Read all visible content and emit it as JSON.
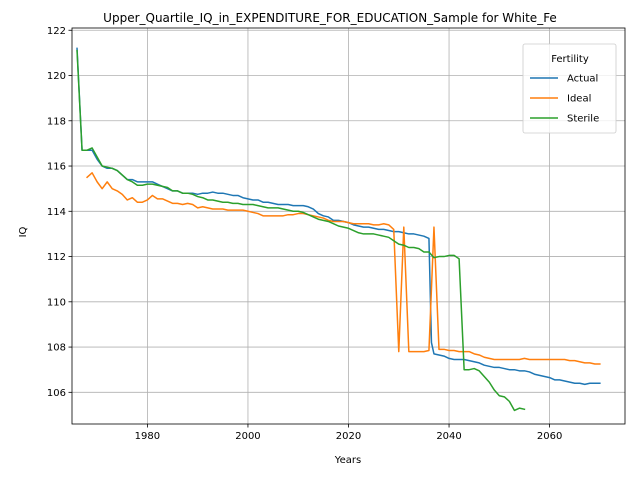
{
  "chart_data": {
    "type": "line",
    "title": "Upper_Quartile_IQ_in_EXPENDITURE_FOR_EDUCATION_Sample for White_Fe",
    "xlabel": "Years",
    "ylabel": "IQ",
    "xlim": [
      1965,
      2075
    ],
    "ylim": [
      104.6,
      122.1
    ],
    "xticks": [
      1980,
      2000,
      2020,
      2040,
      2060
    ],
    "yticks": [
      106,
      108,
      110,
      112,
      114,
      116,
      118,
      120,
      122
    ],
    "grid": true,
    "legend": {
      "title": "Fertility",
      "placement": "top-right"
    },
    "series": [
      {
        "name": "Actual",
        "color": "#1f77b4",
        "points": [
          [
            1966,
            121.2
          ],
          [
            1967,
            116.7
          ],
          [
            1968,
            116.7
          ],
          [
            1969,
            116.7
          ],
          [
            1970,
            116.3
          ],
          [
            1971,
            116.0
          ],
          [
            1972,
            115.9
          ],
          [
            1973,
            115.9
          ],
          [
            1974,
            115.8
          ],
          [
            1975,
            115.6
          ],
          [
            1976,
            115.4
          ],
          [
            1977,
            115.4
          ],
          [
            1978,
            115.3
          ],
          [
            1979,
            115.3
          ],
          [
            1980,
            115.3
          ],
          [
            1981,
            115.3
          ],
          [
            1982,
            115.2
          ],
          [
            1983,
            115.1
          ],
          [
            1984,
            115.0
          ],
          [
            1985,
            114.9
          ],
          [
            1986,
            114.9
          ],
          [
            1987,
            114.8
          ],
          [
            1988,
            114.8
          ],
          [
            1989,
            114.8
          ],
          [
            1990,
            114.75
          ],
          [
            1991,
            114.8
          ],
          [
            1992,
            114.8
          ],
          [
            1993,
            114.85
          ],
          [
            1994,
            114.8
          ],
          [
            1995,
            114.8
          ],
          [
            1996,
            114.75
          ],
          [
            1997,
            114.7
          ],
          [
            1998,
            114.7
          ],
          [
            1999,
            114.6
          ],
          [
            2000,
            114.55
          ],
          [
            2001,
            114.5
          ],
          [
            2002,
            114.5
          ],
          [
            2003,
            114.4
          ],
          [
            2004,
            114.4
          ],
          [
            2005,
            114.35
          ],
          [
            2006,
            114.3
          ],
          [
            2007,
            114.3
          ],
          [
            2008,
            114.3
          ],
          [
            2009,
            114.25
          ],
          [
            2010,
            114.25
          ],
          [
            2011,
            114.25
          ],
          [
            2012,
            114.2
          ],
          [
            2013,
            114.1
          ],
          [
            2014,
            113.9
          ],
          [
            2015,
            113.8
          ],
          [
            2016,
            113.75
          ],
          [
            2017,
            113.6
          ],
          [
            2018,
            113.6
          ],
          [
            2019,
            113.55
          ],
          [
            2020,
            113.5
          ],
          [
            2021,
            113.4
          ],
          [
            2022,
            113.35
          ],
          [
            2023,
            113.3
          ],
          [
            2024,
            113.3
          ],
          [
            2025,
            113.25
          ],
          [
            2026,
            113.2
          ],
          [
            2027,
            113.2
          ],
          [
            2028,
            113.15
          ],
          [
            2029,
            113.1
          ],
          [
            2030,
            113.1
          ],
          [
            2031,
            113.05
          ],
          [
            2032,
            113.0
          ],
          [
            2033,
            113.0
          ],
          [
            2034,
            112.95
          ],
          [
            2035,
            112.9
          ],
          [
            2036,
            112.8
          ],
          [
            2036.5,
            108.2
          ],
          [
            2037,
            107.7
          ],
          [
            2038,
            107.65
          ],
          [
            2039,
            107.6
          ],
          [
            2040,
            107.5
          ],
          [
            2041,
            107.45
          ],
          [
            2042,
            107.45
          ],
          [
            2043,
            107.45
          ],
          [
            2044,
            107.4
          ],
          [
            2045,
            107.35
          ],
          [
            2046,
            107.3
          ],
          [
            2047,
            107.2
          ],
          [
            2048,
            107.15
          ],
          [
            2049,
            107.1
          ],
          [
            2050,
            107.1
          ],
          [
            2051,
            107.05
          ],
          [
            2052,
            107.0
          ],
          [
            2053,
            107.0
          ],
          [
            2054,
            106.95
          ],
          [
            2055,
            106.95
          ],
          [
            2056,
            106.9
          ],
          [
            2057,
            106.8
          ],
          [
            2058,
            106.75
          ],
          [
            2059,
            106.7
          ],
          [
            2060,
            106.65
          ],
          [
            2061,
            106.55
          ],
          [
            2062,
            106.55
          ],
          [
            2063,
            106.5
          ],
          [
            2064,
            106.45
          ],
          [
            2065,
            106.4
          ],
          [
            2066,
            106.4
          ],
          [
            2067,
            106.35
          ],
          [
            2068,
            106.4
          ],
          [
            2069,
            106.4
          ],
          [
            2070,
            106.4
          ]
        ]
      },
      {
        "name": "Ideal",
        "color": "#ff7f0e",
        "points": [
          [
            1968,
            115.5
          ],
          [
            1969,
            115.7
          ],
          [
            1970,
            115.3
          ],
          [
            1971,
            115.0
          ],
          [
            1972,
            115.3
          ],
          [
            1973,
            115.0
          ],
          [
            1974,
            114.9
          ],
          [
            1975,
            114.75
          ],
          [
            1976,
            114.5
          ],
          [
            1977,
            114.6
          ],
          [
            1978,
            114.4
          ],
          [
            1979,
            114.4
          ],
          [
            1980,
            114.5
          ],
          [
            1981,
            114.7
          ],
          [
            1982,
            114.55
          ],
          [
            1983,
            114.55
          ],
          [
            1984,
            114.45
          ],
          [
            1985,
            114.35
          ],
          [
            1986,
            114.35
          ],
          [
            1987,
            114.3
          ],
          [
            1988,
            114.35
          ],
          [
            1989,
            114.3
          ],
          [
            1990,
            114.15
          ],
          [
            1991,
            114.2
          ],
          [
            1992,
            114.15
          ],
          [
            1993,
            114.1
          ],
          [
            1994,
            114.1
          ],
          [
            1995,
            114.1
          ],
          [
            1996,
            114.05
          ],
          [
            1997,
            114.05
          ],
          [
            1998,
            114.05
          ],
          [
            1999,
            114.05
          ],
          [
            2000,
            114.0
          ],
          [
            2001,
            113.95
          ],
          [
            2002,
            113.9
          ],
          [
            2003,
            113.8
          ],
          [
            2004,
            113.8
          ],
          [
            2005,
            113.8
          ],
          [
            2006,
            113.8
          ],
          [
            2007,
            113.8
          ],
          [
            2008,
            113.85
          ],
          [
            2009,
            113.85
          ],
          [
            2010,
            113.9
          ],
          [
            2011,
            113.9
          ],
          [
            2012,
            113.85
          ],
          [
            2013,
            113.8
          ],
          [
            2014,
            113.75
          ],
          [
            2015,
            113.7
          ],
          [
            2016,
            113.6
          ],
          [
            2017,
            113.55
          ],
          [
            2018,
            113.55
          ],
          [
            2019,
            113.55
          ],
          [
            2020,
            113.5
          ],
          [
            2021,
            113.45
          ],
          [
            2022,
            113.45
          ],
          [
            2023,
            113.45
          ],
          [
            2024,
            113.45
          ],
          [
            2025,
            113.4
          ],
          [
            2026,
            113.4
          ],
          [
            2027,
            113.45
          ],
          [
            2028,
            113.4
          ],
          [
            2029,
            113.2
          ],
          [
            2030,
            107.8
          ],
          [
            2031,
            113.3
          ],
          [
            2032,
            107.8
          ],
          [
            2033,
            107.8
          ],
          [
            2034,
            107.8
          ],
          [
            2035,
            107.8
          ],
          [
            2036,
            107.85
          ],
          [
            2037,
            113.3
          ],
          [
            2038,
            107.9
          ],
          [
            2039,
            107.9
          ],
          [
            2040,
            107.85
          ],
          [
            2041,
            107.85
          ],
          [
            2042,
            107.8
          ],
          [
            2043,
            107.8
          ],
          [
            2044,
            107.8
          ],
          [
            2045,
            107.7
          ],
          [
            2046,
            107.65
          ],
          [
            2047,
            107.55
          ],
          [
            2048,
            107.5
          ],
          [
            2049,
            107.45
          ],
          [
            2050,
            107.45
          ],
          [
            2051,
            107.45
          ],
          [
            2052,
            107.45
          ],
          [
            2053,
            107.45
          ],
          [
            2054,
            107.45
          ],
          [
            2055,
            107.5
          ],
          [
            2056,
            107.45
          ],
          [
            2057,
            107.45
          ],
          [
            2058,
            107.45
          ],
          [
            2059,
            107.45
          ],
          [
            2060,
            107.45
          ],
          [
            2061,
            107.45
          ],
          [
            2062,
            107.45
          ],
          [
            2063,
            107.45
          ],
          [
            2064,
            107.4
          ],
          [
            2065,
            107.4
          ],
          [
            2066,
            107.35
          ],
          [
            2067,
            107.3
          ],
          [
            2068,
            107.3
          ],
          [
            2069,
            107.25
          ],
          [
            2070,
            107.25
          ]
        ]
      },
      {
        "name": "Sterile",
        "color": "#2ca02c",
        "points": [
          [
            1966,
            121.1
          ],
          [
            1967,
            116.7
          ],
          [
            1968,
            116.7
          ],
          [
            1969,
            116.8
          ],
          [
            1970,
            116.4
          ],
          [
            1971,
            116.0
          ],
          [
            1972,
            115.95
          ],
          [
            1973,
            115.9
          ],
          [
            1974,
            115.8
          ],
          [
            1975,
            115.6
          ],
          [
            1976,
            115.4
          ],
          [
            1977,
            115.3
          ],
          [
            1978,
            115.15
          ],
          [
            1979,
            115.15
          ],
          [
            1980,
            115.2
          ],
          [
            1981,
            115.2
          ],
          [
            1982,
            115.15
          ],
          [
            1983,
            115.1
          ],
          [
            1984,
            115.05
          ],
          [
            1985,
            114.9
          ],
          [
            1986,
            114.9
          ],
          [
            1987,
            114.8
          ],
          [
            1988,
            114.8
          ],
          [
            1989,
            114.75
          ],
          [
            1990,
            114.65
          ],
          [
            1991,
            114.6
          ],
          [
            1992,
            114.5
          ],
          [
            1993,
            114.5
          ],
          [
            1994,
            114.45
          ],
          [
            1995,
            114.4
          ],
          [
            1996,
            114.4
          ],
          [
            1997,
            114.35
          ],
          [
            1998,
            114.35
          ],
          [
            1999,
            114.3
          ],
          [
            2000,
            114.3
          ],
          [
            2001,
            114.3
          ],
          [
            2002,
            114.25
          ],
          [
            2003,
            114.2
          ],
          [
            2004,
            114.15
          ],
          [
            2005,
            114.15
          ],
          [
            2006,
            114.15
          ],
          [
            2007,
            114.1
          ],
          [
            2008,
            114.05
          ],
          [
            2009,
            114.0
          ],
          [
            2010,
            114.0
          ],
          [
            2011,
            113.95
          ],
          [
            2012,
            113.85
          ],
          [
            2013,
            113.75
          ],
          [
            2014,
            113.65
          ],
          [
            2015,
            113.6
          ],
          [
            2016,
            113.55
          ],
          [
            2017,
            113.45
          ],
          [
            2018,
            113.35
          ],
          [
            2019,
            113.3
          ],
          [
            2020,
            113.25
          ],
          [
            2021,
            113.15
          ],
          [
            2022,
            113.05
          ],
          [
            2023,
            113.0
          ],
          [
            2024,
            113.0
          ],
          [
            2025,
            113.0
          ],
          [
            2026,
            112.95
          ],
          [
            2027,
            112.9
          ],
          [
            2028,
            112.85
          ],
          [
            2029,
            112.7
          ],
          [
            2030,
            112.55
          ],
          [
            2031,
            112.5
          ],
          [
            2032,
            112.4
          ],
          [
            2033,
            112.4
          ],
          [
            2034,
            112.35
          ],
          [
            2035,
            112.2
          ],
          [
            2036,
            112.2
          ],
          [
            2037,
            111.95
          ],
          [
            2038,
            112.0
          ],
          [
            2039,
            112.0
          ],
          [
            2040,
            112.05
          ],
          [
            2041,
            112.05
          ],
          [
            2042,
            111.9
          ],
          [
            2043,
            107.0
          ],
          [
            2044,
            107.0
          ],
          [
            2045,
            107.05
          ],
          [
            2046,
            106.95
          ],
          [
            2047,
            106.7
          ],
          [
            2048,
            106.45
          ],
          [
            2049,
            106.1
          ],
          [
            2050,
            105.85
          ],
          [
            2051,
            105.8
          ],
          [
            2052,
            105.6
          ],
          [
            2053,
            105.2
          ],
          [
            2054,
            105.3
          ],
          [
            2055,
            105.25
          ]
        ]
      }
    ]
  }
}
